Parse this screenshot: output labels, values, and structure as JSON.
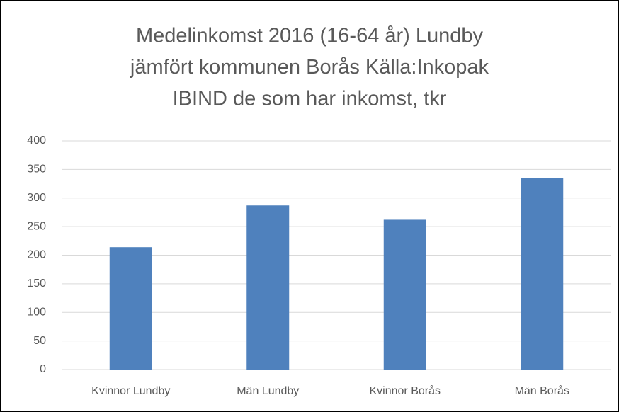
{
  "chart_data": {
    "type": "bar",
    "title": [
      "Medelinkomst 2016 (16-64 år) Lundby",
      "jämfört kommunen Borås Källa:Inkopak",
      "IBIND de som har inkomst, tkr"
    ],
    "categories": [
      "Kvinnor Lundby",
      "Män Lundby",
      "Kvinnor Borås",
      "Män Borås"
    ],
    "values": [
      214,
      287,
      262,
      335
    ],
    "color": "#4f81bd",
    "ylim": [
      0,
      400
    ],
    "yticks": [
      0,
      50,
      100,
      150,
      200,
      250,
      300,
      350,
      400
    ],
    "grid": true
  }
}
